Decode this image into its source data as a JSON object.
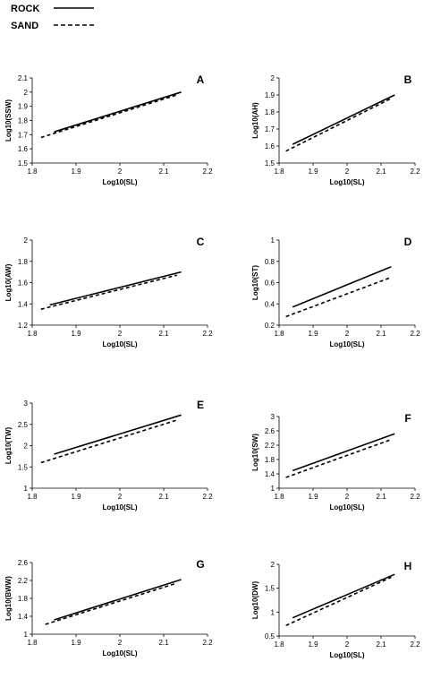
{
  "legend": {
    "entries": [
      {
        "label": "ROCK",
        "style": "solid"
      },
      {
        "label": "SAND",
        "style": "dashed"
      }
    ],
    "placement": "top-left"
  },
  "colors": {
    "line": "#000000",
    "background": "#ffffff"
  },
  "chart_data": [
    {
      "type": "line",
      "panel": "A",
      "xlabel": "Log10(SL)",
      "ylabel": "Log10(SSW)",
      "xlim": [
        1.8,
        2.2
      ],
      "ylim": [
        1.5,
        2.1
      ],
      "xticks": [
        "1.8",
        "1.9",
        "2",
        "2.1",
        "2.2"
      ],
      "yticks": [
        "1.5",
        "1.6",
        "1.7",
        "1.8",
        "1.9",
        "2",
        "2.1"
      ],
      "series": [
        {
          "name": "ROCK",
          "x": [
            1.85,
            2.14
          ],
          "y": [
            1.72,
            2.0
          ]
        },
        {
          "name": "SAND",
          "x": [
            1.82,
            2.13
          ],
          "y": [
            1.68,
            1.98
          ]
        }
      ]
    },
    {
      "type": "line",
      "panel": "B",
      "xlabel": "Log10(SL)",
      "ylabel": "Log10(AH)",
      "xlim": [
        1.8,
        2.2
      ],
      "ylim": [
        1.5,
        2.0
      ],
      "xticks": [
        "1.8",
        "1.9",
        "2",
        "2.1",
        "2.2"
      ],
      "yticks": [
        "1.5",
        "1.6",
        "1.7",
        "1.8",
        "1.9",
        "2"
      ],
      "series": [
        {
          "name": "ROCK",
          "x": [
            1.84,
            2.14
          ],
          "y": [
            1.61,
            1.9
          ]
        },
        {
          "name": "SAND",
          "x": [
            1.82,
            2.13
          ],
          "y": [
            1.57,
            1.88
          ]
        }
      ]
    },
    {
      "type": "line",
      "panel": "C",
      "xlabel": "Log10(SL)",
      "ylabel": "Log10(AW)",
      "xlim": [
        1.8,
        2.2
      ],
      "ylim": [
        1.2,
        2.0
      ],
      "xticks": [
        "1.8",
        "1.9",
        "2",
        "2.1",
        "2.2"
      ],
      "yticks": [
        "1.2",
        "1.4",
        "1.6",
        "1.8",
        "2"
      ],
      "series": [
        {
          "name": "ROCK",
          "x": [
            1.84,
            2.14
          ],
          "y": [
            1.39,
            1.7
          ]
        },
        {
          "name": "SAND",
          "x": [
            1.82,
            2.13
          ],
          "y": [
            1.35,
            1.67
          ]
        }
      ]
    },
    {
      "type": "line",
      "panel": "D",
      "xlabel": "Log10(SL)",
      "ylabel": "Log10(ST)",
      "xlim": [
        1.8,
        2.2
      ],
      "ylim": [
        0.2,
        1.0
      ],
      "xticks": [
        "1.8",
        "1.9",
        "2",
        "2.1",
        "2.2"
      ],
      "yticks": [
        "0.2",
        "0.4",
        "0.6",
        "0.8",
        "1"
      ],
      "series": [
        {
          "name": "ROCK",
          "x": [
            1.84,
            2.13
          ],
          "y": [
            0.37,
            0.75
          ]
        },
        {
          "name": "SAND",
          "x": [
            1.82,
            2.13
          ],
          "y": [
            0.28,
            0.65
          ]
        }
      ]
    },
    {
      "type": "line",
      "panel": "E",
      "xlabel": "Log10(SL)",
      "ylabel": "Log10(TW)",
      "xlim": [
        1.8,
        2.2
      ],
      "ylim": [
        1.0,
        3.0
      ],
      "xticks": [
        "1.8",
        "1.9",
        "2",
        "2.1",
        "2.2"
      ],
      "yticks": [
        "1",
        "1.5",
        "2",
        "2.5",
        "3"
      ],
      "series": [
        {
          "name": "ROCK",
          "x": [
            1.85,
            2.14
          ],
          "y": [
            1.8,
            2.72
          ]
        },
        {
          "name": "SAND",
          "x": [
            1.82,
            2.13
          ],
          "y": [
            1.6,
            2.6
          ]
        }
      ]
    },
    {
      "type": "line",
      "panel": "F",
      "xlabel": "Log10(SL)",
      "ylabel": "Log10(SW)",
      "xlim": [
        1.8,
        2.2
      ],
      "ylim": [
        1.0,
        3.0
      ],
      "xticks": [
        "1.8",
        "1.9",
        "2",
        "2.1",
        "2.2"
      ],
      "yticks": [
        "1",
        "1.4",
        "1.8",
        "2.2",
        "2.6",
        "3"
      ],
      "series": [
        {
          "name": "ROCK",
          "x": [
            1.84,
            2.14
          ],
          "y": [
            1.49,
            2.52
          ]
        },
        {
          "name": "SAND",
          "x": [
            1.82,
            2.13
          ],
          "y": [
            1.3,
            2.36
          ]
        }
      ]
    },
    {
      "type": "line",
      "panel": "G",
      "xlabel": "Log10(SL)",
      "ylabel": "Log10(BWW)",
      "xlim": [
        1.8,
        2.2
      ],
      "ylim": [
        1.0,
        2.6
      ],
      "xticks": [
        "1.8",
        "1.9",
        "2",
        "2.1",
        "2.2"
      ],
      "yticks": [
        "1",
        "1.4",
        "1.8",
        "2.2",
        "2.6"
      ],
      "series": [
        {
          "name": "ROCK",
          "x": [
            1.85,
            2.14
          ],
          "y": [
            1.32,
            2.22
          ]
        },
        {
          "name": "SAND",
          "x": [
            1.83,
            2.13
          ],
          "y": [
            1.22,
            2.14
          ]
        }
      ]
    },
    {
      "type": "line",
      "panel": "H",
      "xlabel": "Log10(SL)",
      "ylabel": "Log10(DW)",
      "xlim": [
        1.8,
        2.2
      ],
      "ylim": [
        0.5,
        2.0
      ],
      "xticks": [
        "1.8",
        "1.9",
        "2",
        "2.1",
        "2.2"
      ],
      "yticks": [
        "0.5",
        "1",
        "1.5",
        "2"
      ],
      "series": [
        {
          "name": "ROCK",
          "x": [
            1.84,
            2.14
          ],
          "y": [
            0.88,
            1.79
          ]
        },
        {
          "name": "SAND",
          "x": [
            1.82,
            2.13
          ],
          "y": [
            0.72,
            1.73
          ]
        }
      ]
    }
  ]
}
